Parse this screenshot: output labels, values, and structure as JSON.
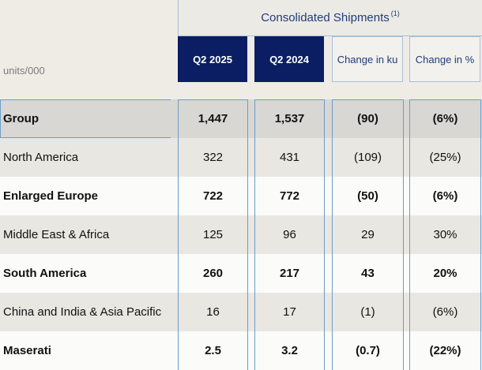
{
  "header": {
    "title": "Consolidated Shipments",
    "footnote": "(1)",
    "units": "units/000"
  },
  "columns": [
    "Q2 2025",
    "Q2 2024",
    "Change in ku",
    "Change in %"
  ],
  "rows": [
    {
      "label": "Group",
      "values": [
        "1,447",
        "1,537",
        "(90)",
        "(6%)"
      ],
      "bold": true
    },
    {
      "label": "North America",
      "values": [
        "322",
        "431",
        "(109)",
        "(25%)"
      ],
      "bold": false
    },
    {
      "label": "Enlarged Europe",
      "values": [
        "722",
        "772",
        "(50)",
        "(6%)"
      ],
      "bold": true
    },
    {
      "label": "Middle East & Africa",
      "values": [
        "125",
        "96",
        "29",
        "30%"
      ],
      "bold": false
    },
    {
      "label": "South America",
      "values": [
        "260",
        "217",
        "43",
        "20%"
      ],
      "bold": true
    },
    {
      "label": "China and India & Asia Pacific",
      "values": [
        "16",
        "17",
        "(1)",
        "(6%)"
      ],
      "bold": false
    },
    {
      "label": "Maserati",
      "values": [
        "2.5",
        "3.2",
        "(0.7)",
        "(22%)"
      ],
      "bold": true
    }
  ],
  "colors": {
    "header_dark": "#0b1e63",
    "header_text": "#1f3c7d",
    "border": "#6e9cc6"
  }
}
